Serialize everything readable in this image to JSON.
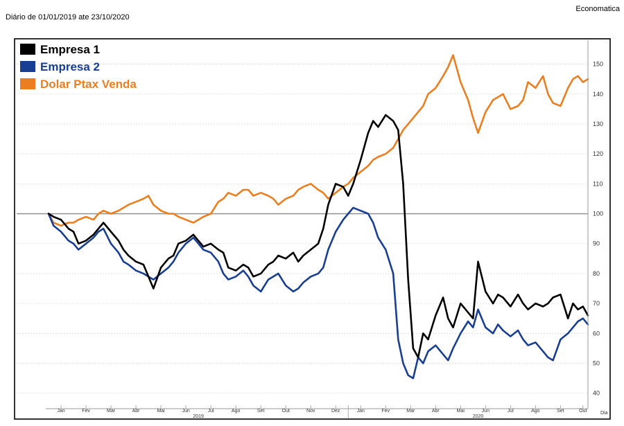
{
  "header": {
    "period_text": "Diário de 01/01/2019 ate 23/10/2020",
    "brand": "Economatica"
  },
  "chart_data": {
    "type": "line",
    "title": "",
    "xlabel": "Dia",
    "ylabel": "",
    "ylim": [
      36,
      158
    ],
    "yticks": [
      40,
      50,
      60,
      70,
      80,
      90,
      100,
      110,
      120,
      130,
      140,
      150
    ],
    "reference_line": 100,
    "x_range": [
      0,
      21.6
    ],
    "month_ticks": [
      {
        "label": "Jan",
        "x": 0.5
      },
      {
        "label": "Fev",
        "x": 1.5
      },
      {
        "label": "Mar",
        "x": 2.5
      },
      {
        "label": "Abr",
        "x": 3.5
      },
      {
        "label": "Mai",
        "x": 4.5
      },
      {
        "label": "Jun",
        "x": 5.5
      },
      {
        "label": "Jul",
        "x": 6.5
      },
      {
        "label": "Ago",
        "x": 7.5
      },
      {
        "label": "Set",
        "x": 8.5
      },
      {
        "label": "Out",
        "x": 9.5
      },
      {
        "label": "Nov",
        "x": 10.5
      },
      {
        "label": "Dez",
        "x": 11.5
      },
      {
        "label": "Jan",
        "x": 12.5
      },
      {
        "label": "Fev",
        "x": 13.5
      },
      {
        "label": "Mar",
        "x": 14.5
      },
      {
        "label": "Abr",
        "x": 15.5
      },
      {
        "label": "Mai",
        "x": 16.5
      },
      {
        "label": "Jun",
        "x": 17.5
      },
      {
        "label": "Jul",
        "x": 18.5
      },
      {
        "label": "Ago",
        "x": 19.5
      },
      {
        "label": "Set",
        "x": 20.5
      },
      {
        "label": "Out",
        "x": 21.4
      }
    ],
    "year_labels": [
      {
        "label": "2019",
        "x": 6.0
      },
      {
        "label": "2020",
        "x": 17.2
      }
    ],
    "year_separator_x": 12.0,
    "series": [
      {
        "name": "Empresa 1",
        "color": "#000000",
        "x": [
          0,
          0.2,
          0.5,
          0.8,
          1.0,
          1.2,
          1.5,
          1.8,
          2.0,
          2.2,
          2.5,
          2.8,
          3.0,
          3.2,
          3.5,
          3.8,
          4.0,
          4.2,
          4.5,
          4.8,
          5.0,
          5.2,
          5.5,
          5.8,
          6.0,
          6.2,
          6.5,
          6.8,
          7.0,
          7.2,
          7.5,
          7.8,
          8.0,
          8.2,
          8.5,
          8.8,
          9.0,
          9.2,
          9.5,
          9.8,
          10.0,
          10.2,
          10.5,
          10.8,
          11.0,
          11.2,
          11.5,
          11.8,
          12.0,
          12.2,
          12.5,
          12.8,
          13.0,
          13.2,
          13.5,
          13.8,
          14.0,
          14.2,
          14.4,
          14.6,
          14.8,
          15.0,
          15.2,
          15.5,
          15.8,
          16.0,
          16.2,
          16.5,
          16.8,
          17.0,
          17.2,
          17.5,
          17.8,
          18.0,
          18.2,
          18.5,
          18.8,
          19.0,
          19.2,
          19.5,
          19.8,
          20.0,
          20.2,
          20.5,
          20.8,
          21.0,
          21.2,
          21.4,
          21.6
        ],
        "values": [
          100,
          99,
          98,
          95,
          94,
          90,
          91,
          93,
          95,
          97,
          94,
          91,
          88,
          86,
          84,
          83,
          79,
          75,
          82,
          85,
          86,
          90,
          91,
          93,
          91,
          89,
          90,
          88,
          87,
          82,
          81,
          83,
          82,
          79,
          80,
          83,
          84,
          86,
          85,
          87,
          84,
          86,
          88,
          90,
          95,
          103,
          110,
          109,
          106,
          110,
          118,
          127,
          131,
          129,
          133,
          131,
          128,
          110,
          78,
          55,
          52,
          60,
          58,
          66,
          72,
          65,
          62,
          70,
          67,
          65,
          84,
          74,
          70,
          73,
          72,
          69,
          73,
          70,
          68,
          70,
          69,
          70,
          72,
          73,
          65,
          70,
          68,
          69,
          66
        ]
      },
      {
        "name": "Empresa 2",
        "color": "#173e92",
        "x": [
          0,
          0.2,
          0.5,
          0.8,
          1.0,
          1.2,
          1.5,
          1.8,
          2.0,
          2.2,
          2.5,
          2.8,
          3.0,
          3.2,
          3.5,
          3.8,
          4.0,
          4.2,
          4.5,
          4.8,
          5.0,
          5.2,
          5.5,
          5.8,
          6.0,
          6.2,
          6.5,
          6.8,
          7.0,
          7.2,
          7.5,
          7.8,
          8.0,
          8.2,
          8.5,
          8.8,
          9.0,
          9.2,
          9.5,
          9.8,
          10.0,
          10.2,
          10.5,
          10.8,
          11.0,
          11.2,
          11.5,
          11.8,
          12.0,
          12.2,
          12.5,
          12.8,
          13.0,
          13.2,
          13.5,
          13.8,
          14.0,
          14.2,
          14.4,
          14.6,
          14.8,
          15.0,
          15.2,
          15.5,
          15.8,
          16.0,
          16.2,
          16.5,
          16.8,
          17.0,
          17.2,
          17.5,
          17.8,
          18.0,
          18.2,
          18.5,
          18.8,
          19.0,
          19.2,
          19.5,
          19.8,
          20.0,
          20.2,
          20.5,
          20.8,
          21.0,
          21.2,
          21.4,
          21.6
        ],
        "values": [
          100,
          96,
          94,
          91,
          90,
          88,
          90,
          92,
          94,
          95,
          90,
          87,
          84,
          83,
          81,
          80,
          79,
          78,
          80,
          82,
          84,
          87,
          90,
          92,
          90,
          88,
          87,
          84,
          80,
          78,
          79,
          81,
          79,
          76,
          74,
          78,
          79,
          80,
          76,
          74,
          75,
          77,
          79,
          80,
          82,
          88,
          94,
          98,
          100,
          102,
          101,
          100,
          97,
          92,
          88,
          80,
          58,
          50,
          46,
          45,
          52,
          50,
          54,
          56,
          53,
          51,
          55,
          60,
          64,
          62,
          68,
          62,
          60,
          63,
          61,
          59,
          61,
          58,
          56,
          57,
          54,
          52,
          51,
          58,
          60,
          62,
          64,
          65,
          63
        ]
      },
      {
        "name": "Dolar Ptax Venda",
        "color": "#ed7e20",
        "x": [
          0,
          0.2,
          0.5,
          0.8,
          1.0,
          1.2,
          1.5,
          1.8,
          2.0,
          2.2,
          2.5,
          2.8,
          3.0,
          3.2,
          3.5,
          3.8,
          4.0,
          4.2,
          4.5,
          4.8,
          5.0,
          5.2,
          5.5,
          5.8,
          6.0,
          6.2,
          6.5,
          6.8,
          7.0,
          7.2,
          7.5,
          7.8,
          8.0,
          8.2,
          8.5,
          8.8,
          9.0,
          9.2,
          9.5,
          9.8,
          10.0,
          10.2,
          10.5,
          10.8,
          11.0,
          11.2,
          11.5,
          11.8,
          12.0,
          12.2,
          12.5,
          12.8,
          13.0,
          13.2,
          13.5,
          13.8,
          14.0,
          14.2,
          14.4,
          14.6,
          14.8,
          15.0,
          15.2,
          15.5,
          15.8,
          16.0,
          16.2,
          16.5,
          16.8,
          17.0,
          17.2,
          17.5,
          17.8,
          18.0,
          18.2,
          18.5,
          18.8,
          19.0,
          19.2,
          19.5,
          19.8,
          20.0,
          20.2,
          20.5,
          20.8,
          21.0,
          21.2,
          21.4,
          21.6
        ],
        "values": [
          100,
          97,
          96,
          97,
          97,
          98,
          99,
          98,
          100,
          101,
          100,
          101,
          102,
          103,
          104,
          105,
          106,
          103,
          101,
          100,
          100,
          99,
          98,
          97,
          98,
          99,
          100,
          104,
          105,
          107,
          106,
          108,
          108,
          106,
          107,
          106,
          105,
          103,
          105,
          106,
          108,
          109,
          110,
          108,
          107,
          105,
          107,
          109,
          110,
          112,
          114,
          116,
          118,
          119,
          120,
          122,
          125,
          128,
          130,
          132,
          134,
          136,
          140,
          142,
          146,
          149,
          153,
          144,
          138,
          132,
          127,
          134,
          138,
          139,
          140,
          135,
          136,
          138,
          144,
          142,
          146,
          140,
          137,
          136,
          142,
          145,
          146,
          144,
          145
        ]
      }
    ]
  }
}
